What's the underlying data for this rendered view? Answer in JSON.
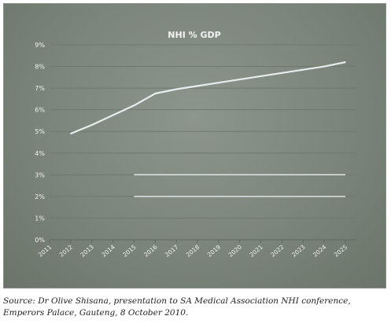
{
  "chart_data": {
    "type": "line",
    "title": "NHI % GDP",
    "xlabel": "",
    "ylabel": "",
    "categories": [
      "2011",
      "2012",
      "2013",
      "2014",
      "2015",
      "2016",
      "2017",
      "2018",
      "2019",
      "2020",
      "2021",
      "2022",
      "2023",
      "2024",
      "2025"
    ],
    "ylim": [
      0,
      9
    ],
    "yticks": [
      "0%",
      "1%",
      "2%",
      "3%",
      "4%",
      "5%",
      "6%",
      "7%",
      "8%",
      "9%"
    ],
    "grid": true,
    "legend": "none",
    "series": [
      {
        "values": [
          null,
          4.9,
          5.3,
          5.75,
          6.2,
          6.75,
          6.95,
          7.1,
          7.25,
          7.4,
          7.55,
          7.7,
          7.85,
          8.0,
          8.2
        ]
      }
    ],
    "reference_lines": [
      {
        "y": 3.0,
        "x_from": "2015",
        "x_to": "2025"
      },
      {
        "y": 2.0,
        "x_from": "2015",
        "x_to": "2025"
      }
    ],
    "colors": {
      "line": "#e8ecef",
      "gridline": "#6f786d",
      "text": "#f2f2f2"
    }
  },
  "source": "Source: Dr Olive Shisana, presentation to SA Medical Association NHI conference, Emperors Palace, Gauteng, 8 October 2010."
}
